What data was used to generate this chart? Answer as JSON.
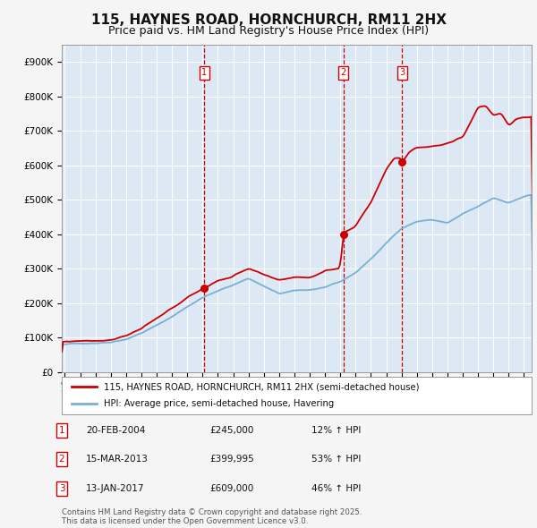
{
  "title": "115, HAYNES ROAD, HORNCHURCH, RM11 2HX",
  "subtitle": "Price paid vs. HM Land Registry's House Price Index (HPI)",
  "title_fontsize": 11,
  "subtitle_fontsize": 9,
  "plot_bg_color": "#dce9f5",
  "fig_bg_color": "#f5f5f5",
  "red_color": "#cc0000",
  "blue_color": "#7aafd4",
  "grid_color": "#ffffff",
  "yticks": [
    0,
    100000,
    200000,
    300000,
    400000,
    500000,
    600000,
    700000,
    800000,
    900000
  ],
  "ytick_labels": [
    "£0",
    "£100K",
    "£200K",
    "£300K",
    "£400K",
    "£500K",
    "£600K",
    "£700K",
    "£800K",
    "£900K"
  ],
  "xlim_start": 1994.8,
  "xlim_end": 2025.5,
  "ylim_min": 0,
  "ylim_max": 950000,
  "purchase_dates": [
    2004.12,
    2013.2,
    2017.04
  ],
  "purchase_prices": [
    245000,
    399995,
    609000
  ],
  "purchase_labels": [
    "1",
    "2",
    "3"
  ],
  "hpi_key_times": [
    1994.8,
    1995.5,
    1997,
    1998,
    1999,
    2000,
    2001,
    2002,
    2003,
    2004,
    2005,
    2006,
    2007,
    2008,
    2009,
    2010,
    2011,
    2012,
    2013,
    2014,
    2015,
    2016,
    2017,
    2018,
    2019,
    2020,
    2021,
    2022,
    2023,
    2024,
    2025,
    2025.5
  ],
  "hpi_key_vals": [
    80000,
    82000,
    86000,
    90000,
    100000,
    118000,
    140000,
    165000,
    195000,
    222000,
    240000,
    258000,
    278000,
    255000,
    232000,
    240000,
    242000,
    250000,
    263000,
    290000,
    330000,
    375000,
    420000,
    440000,
    445000,
    435000,
    460000,
    480000,
    505000,
    492000,
    510000,
    515000
  ],
  "prop_key_times": [
    1994.8,
    1995.5,
    1997,
    1998,
    1999,
    2000,
    2001,
    2002,
    2003,
    2004,
    2004.12,
    2005,
    2006,
    2007,
    2008,
    2009,
    2010,
    2011,
    2012,
    2013,
    2013.2,
    2014,
    2015,
    2016,
    2016.5,
    2017,
    2017.04,
    2017.5,
    2018,
    2019,
    2020,
    2021,
    2022,
    2022.5,
    2023,
    2023.5,
    2024,
    2024.5,
    2025,
    2025.5
  ],
  "prop_key_vals": [
    88000,
    90000,
    94000,
    98000,
    112000,
    132000,
    157000,
    185000,
    215000,
    242000,
    245000,
    265000,
    278000,
    302000,
    280000,
    258000,
    268000,
    268000,
    290000,
    297000,
    399995,
    420000,
    490000,
    590000,
    620000,
    620000,
    609000,
    640000,
    655000,
    658000,
    663000,
    683000,
    770000,
    775000,
    747000,
    755000,
    720000,
    738000,
    740000,
    742000
  ],
  "legend_line1": "115, HAYNES ROAD, HORNCHURCH, RM11 2HX (semi-detached house)",
  "legend_line2": "HPI: Average price, semi-detached house, Havering",
  "table_entries": [
    {
      "num": "1",
      "date": "20-FEB-2004",
      "price": "£245,000",
      "change": "12% ↑ HPI"
    },
    {
      "num": "2",
      "date": "15-MAR-2013",
      "price": "£399,995",
      "change": "53% ↑ HPI"
    },
    {
      "num": "3",
      "date": "13-JAN-2017",
      "price": "£609,000",
      "change": "46% ↑ HPI"
    }
  ],
  "footer": "Contains HM Land Registry data © Crown copyright and database right 2025.\nThis data is licensed under the Open Government Licence v3.0."
}
